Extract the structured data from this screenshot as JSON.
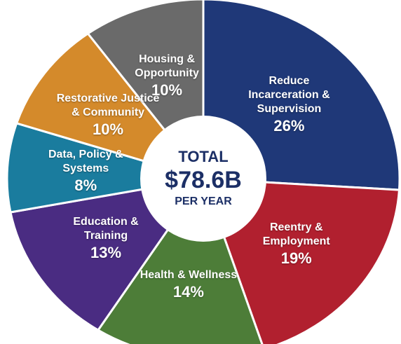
{
  "chart_data": {
    "type": "pie",
    "categories": [
      "Reduce Incarceration & Supervision",
      "Reentry & Employment",
      "Health & Wellness",
      "Education & Training",
      "Data, Policy & Systems",
      "Restorative Justice & Community",
      "Housing & Opportunity"
    ],
    "values": [
      26,
      19,
      14,
      13,
      8,
      10,
      10
    ],
    "value_labels": [
      "26%",
      "19%",
      "14%",
      "13%",
      "8%",
      "10%",
      "10%"
    ],
    "colors": [
      "#1f3878",
      "#b1202f",
      "#4d7d38",
      "#4a2c82",
      "#1a7c9e",
      "#d48a2b",
      "#6a6a6a"
    ],
    "center_label": [
      "TOTAL",
      "$78.6B",
      "PER YEAR"
    ]
  }
}
